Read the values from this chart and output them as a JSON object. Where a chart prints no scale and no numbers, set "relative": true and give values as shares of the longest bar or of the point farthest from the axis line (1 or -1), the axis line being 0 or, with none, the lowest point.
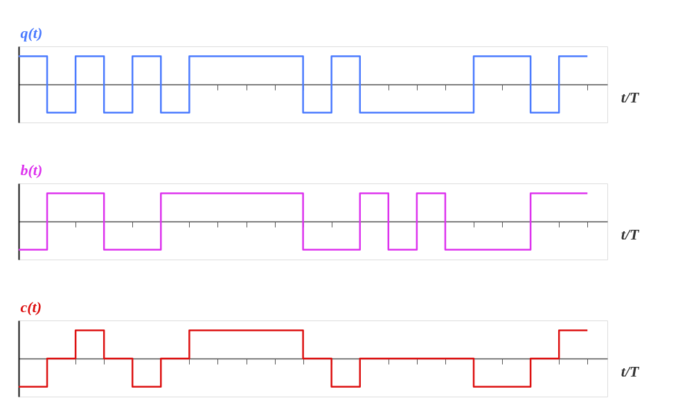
{
  "chart_data": [
    {
      "type": "step",
      "ylabel": "q(t)",
      "xlabel": "t/T",
      "relative": true,
      "categories": [
        null,
        null,
        null,
        null,
        null,
        null,
        null,
        null,
        null,
        null,
        null,
        null,
        null,
        null,
        null,
        null,
        null,
        null,
        null,
        null,
        null
      ],
      "series": [
        {
          "color": "#4b7bff",
          "values": [
            1,
            -1,
            1,
            -1,
            1,
            -1,
            1,
            1,
            1,
            1,
            -1,
            1,
            -1,
            -1,
            -1,
            -1,
            1,
            1,
            -1,
            1,
            1
          ]
        }
      ]
    },
    {
      "type": "step",
      "ylabel": "b(t)",
      "xlabel": "t/T",
      "relative": true,
      "categories": [
        null,
        null,
        null,
        null,
        null,
        null,
        null,
        null,
        null,
        null,
        null,
        null,
        null,
        null,
        null,
        null,
        null,
        null,
        null,
        null,
        null
      ],
      "series": [
        {
          "color": "#dd33ee",
          "values": [
            -1,
            1,
            1,
            -1,
            -1,
            1,
            1,
            1,
            1,
            1,
            -1,
            -1,
            1,
            -1,
            1,
            -1,
            -1,
            -1,
            1,
            1,
            1
          ]
        }
      ]
    },
    {
      "type": "step",
      "ylabel": "c(t)",
      "xlabel": "t/T",
      "relative": true,
      "categories": [
        null,
        null,
        null,
        null,
        null,
        null,
        null,
        null,
        null,
        null,
        null,
        null,
        null,
        null,
        null,
        null,
        null,
        null,
        null,
        null,
        null
      ],
      "series": [
        {
          "color": "#dd1111",
          "values": [
            -1,
            0,
            1,
            0,
            -1,
            0,
            1,
            1,
            1,
            1,
            0,
            -1,
            0,
            0,
            0,
            0,
            -1,
            -1,
            0,
            1,
            1
          ]
        }
      ]
    }
  ]
}
